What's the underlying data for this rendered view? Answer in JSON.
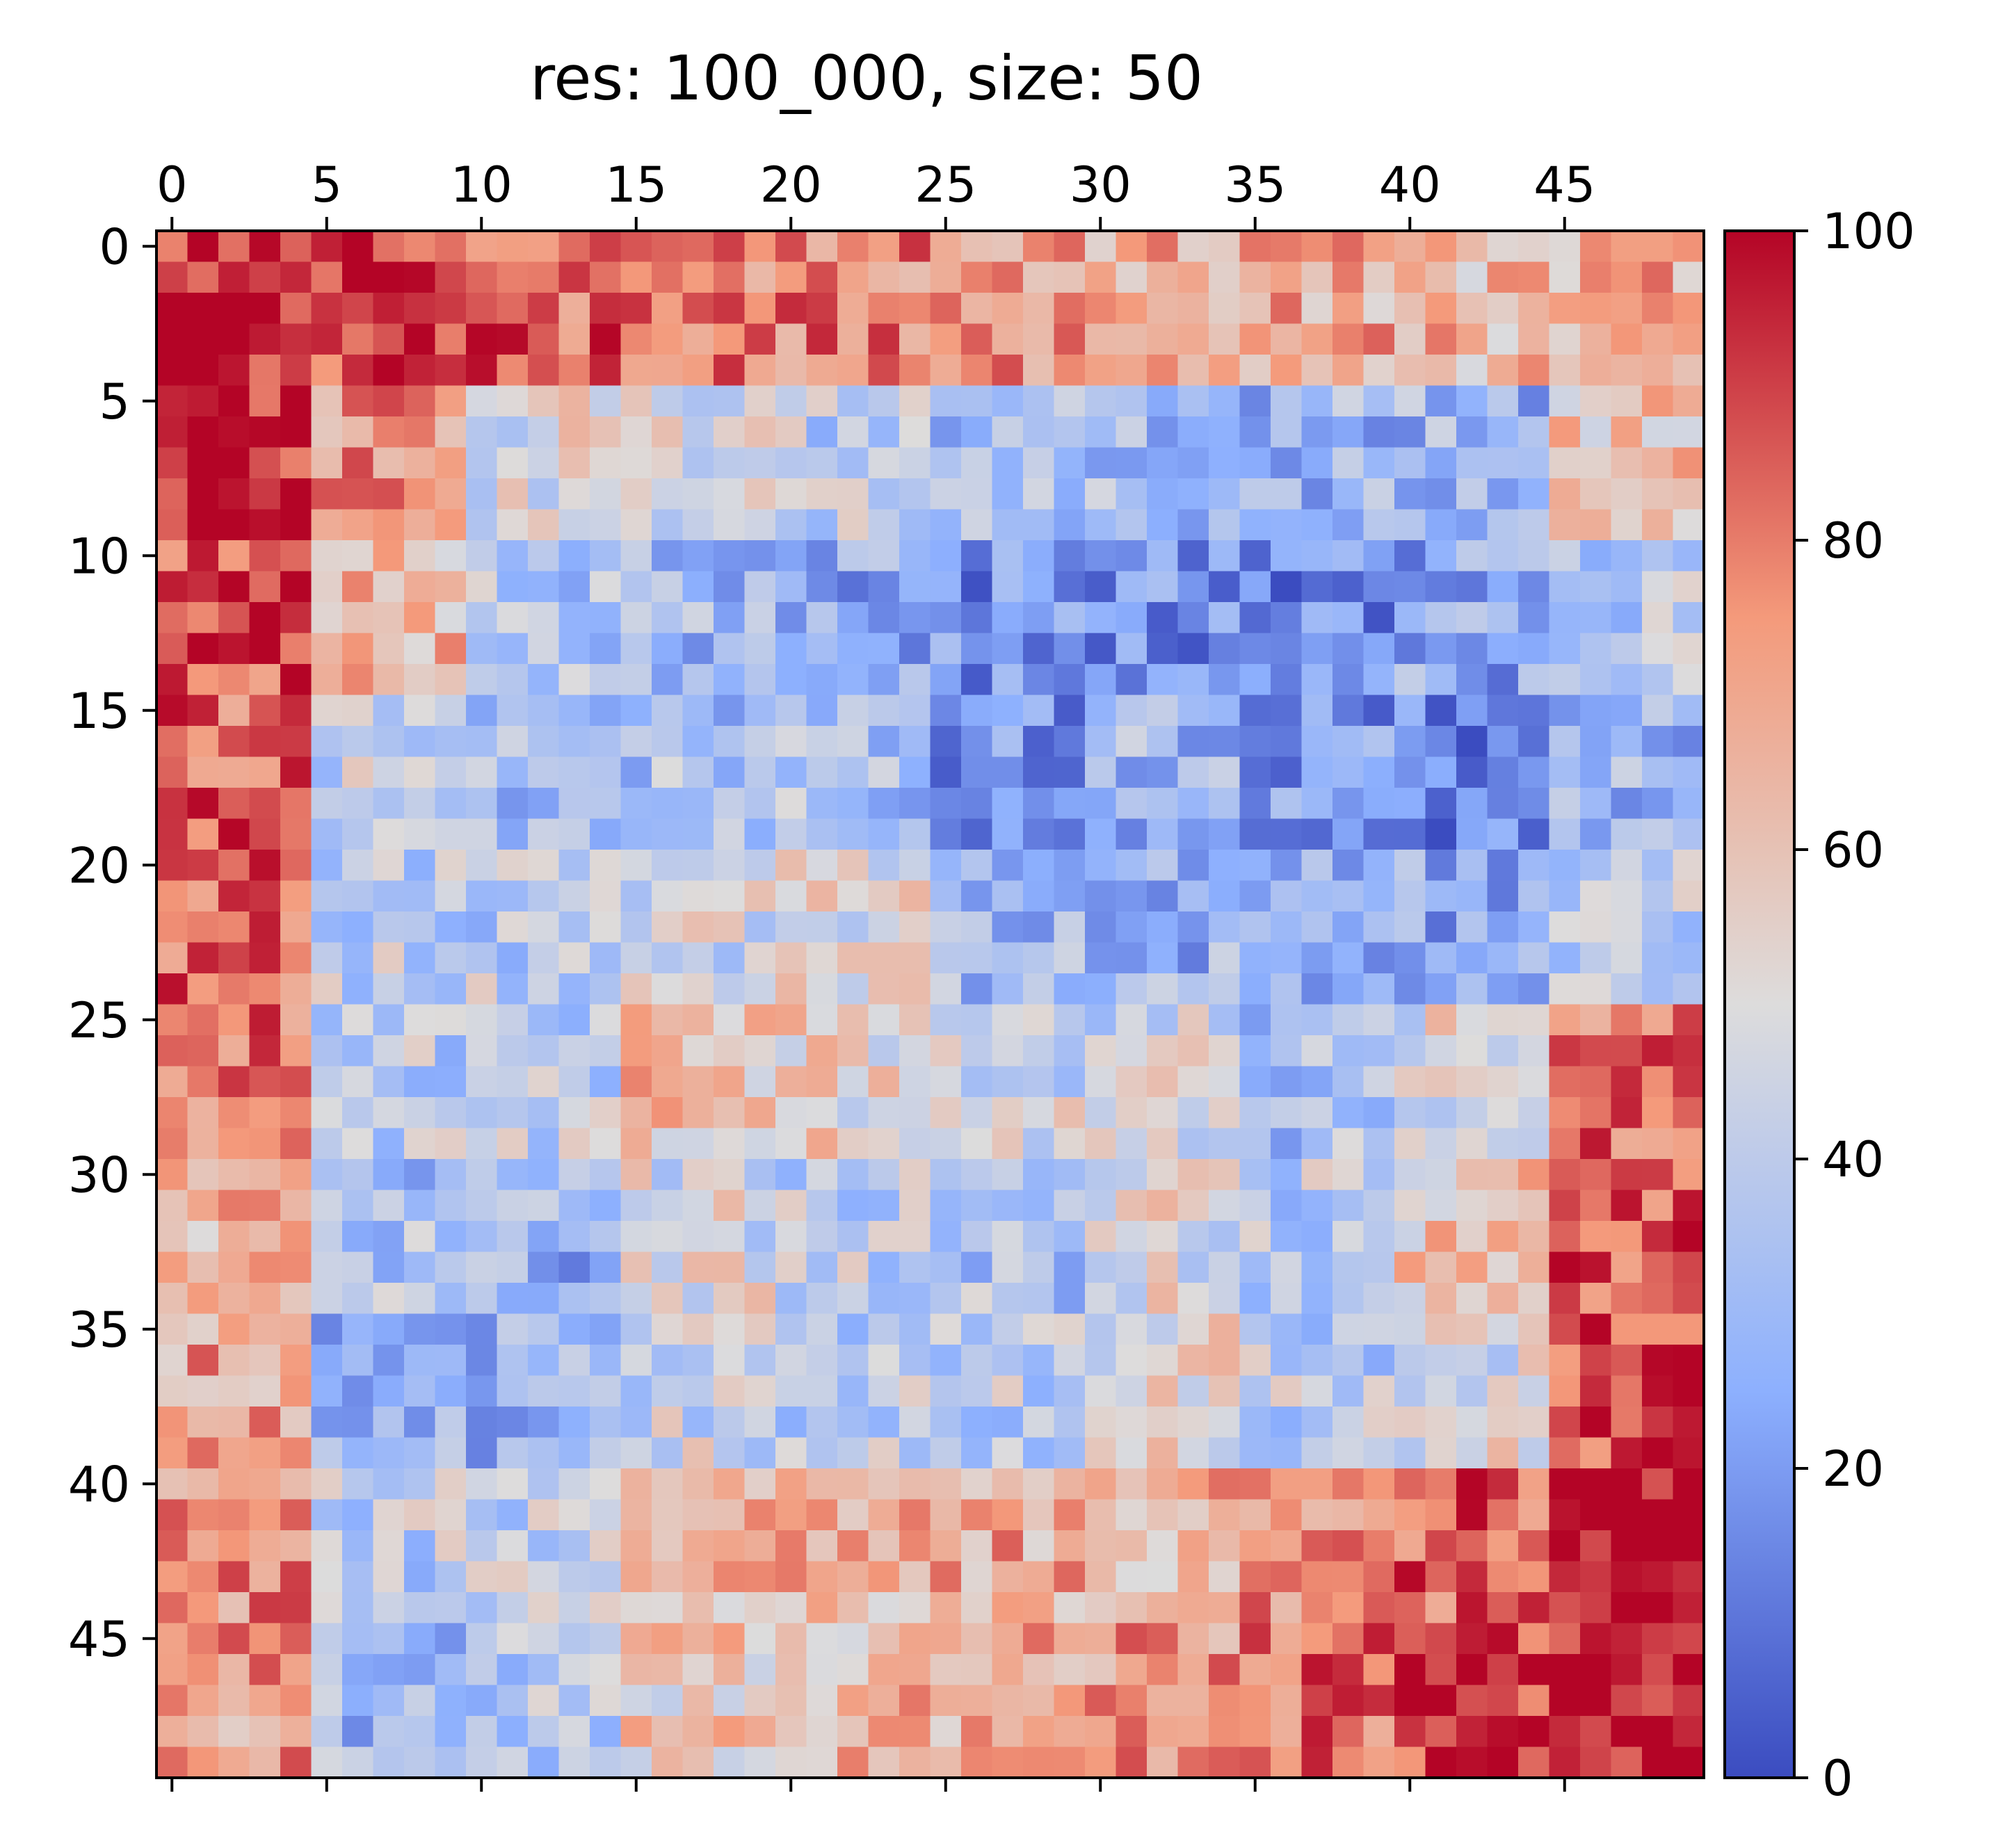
{
  "chart_data": {
    "type": "heatmap",
    "title": "res: 100_000, size: 50",
    "xlabel": "",
    "ylabel": "",
    "rows": 50,
    "cols": 50,
    "value_range": [
      0,
      100
    ],
    "colormap": "coolwarm",
    "x_ticks": [
      "0",
      "5",
      "10",
      "15",
      "20",
      "25",
      "30",
      "35",
      "40",
      "45"
    ],
    "x_tick_positions": [
      0,
      5,
      10,
      15,
      20,
      25,
      30,
      35,
      40,
      45
    ],
    "y_ticks": [
      "0",
      "5",
      "10",
      "15",
      "20",
      "25",
      "30",
      "35",
      "40",
      "45"
    ],
    "y_tick_positions": [
      0,
      5,
      10,
      15,
      20,
      25,
      30,
      35,
      40,
      45
    ],
    "colorbar": {
      "ticks": [
        "0",
        "20",
        "40",
        "60",
        "80",
        "100"
      ],
      "tick_values": [
        0,
        20,
        40,
        60,
        80,
        100
      ]
    },
    "block_values": [
      [
        96,
        91,
        84,
        79,
        78,
        74,
        70,
        68,
        64,
        67
      ],
      [
        94,
        73,
        50,
        48,
        40,
        35,
        34,
        30,
        30,
        60
      ],
      [
        88,
        64,
        38,
        30,
        25,
        18,
        18,
        15,
        25,
        40
      ],
      [
        84,
        42,
        32,
        35,
        35,
        20,
        30,
        20,
        14,
        30
      ],
      [
        83,
        40,
        40,
        45,
        50,
        30,
        28,
        30,
        25,
        40
      ],
      [
        81,
        40,
        40,
        62,
        55,
        45,
        45,
        35,
        50,
        80
      ],
      [
        66,
        35,
        28,
        48,
        40,
        35,
        50,
        40,
        60,
        88
      ],
      [
        70,
        30,
        28,
        45,
        40,
        40,
        50,
        40,
        50,
        88
      ],
      [
        76,
        40,
        40,
        66,
        64,
        68,
        66,
        76,
        84,
        98
      ],
      [
        72,
        32,
        38,
        58,
        64,
        68,
        72,
        82,
        92,
        100
      ]
    ],
    "grid": false,
    "legend": "none"
  }
}
